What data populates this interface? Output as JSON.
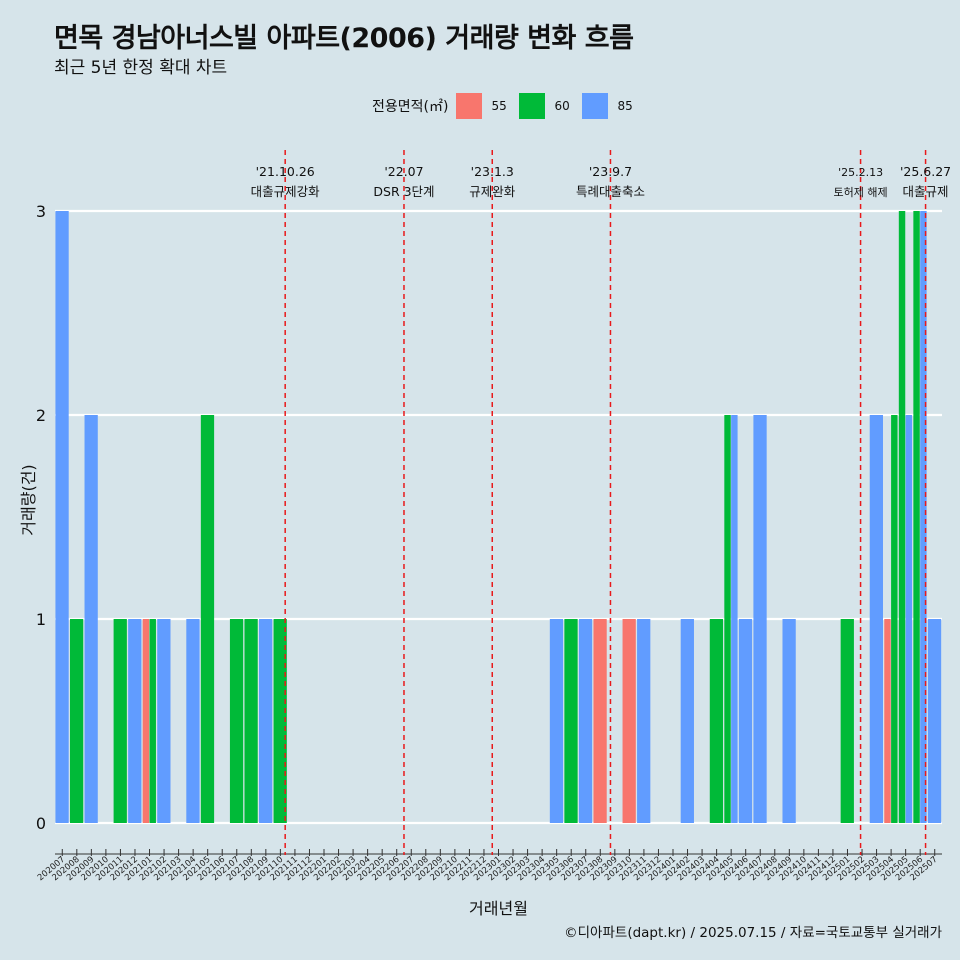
{
  "title": "면목 경남아너스빌 아파트(2006) 거래량 변화 흐름",
  "subtitle": "최근 5년 한정 확대 차트",
  "caption": "©디아파트(dapt.kr) / 2025.07.15 / 자료=국토교통부 실거래가",
  "legend": {
    "title": "전용면적(㎡)",
    "items": [
      {
        "label": "55",
        "color": "#f8766d"
      },
      {
        "label": "60",
        "color": "#00ba38"
      },
      {
        "label": "85",
        "color": "#619cff"
      }
    ]
  },
  "chart_data": {
    "type": "bar",
    "xlabel": "거래년월",
    "ylabel": "거래량(건)",
    "ylim": [
      0,
      3
    ],
    "yticks": [
      0,
      1,
      2,
      3
    ],
    "grid": true,
    "legend_position": "top",
    "categories": [
      "202007",
      "202008",
      "202009",
      "202010",
      "202011",
      "202012",
      "202101",
      "202102",
      "202103",
      "202104",
      "202105",
      "202106",
      "202107",
      "202108",
      "202109",
      "202110",
      "202111",
      "202112",
      "202201",
      "202202",
      "202203",
      "202204",
      "202205",
      "202206",
      "202207",
      "202208",
      "202209",
      "202210",
      "202211",
      "202212",
      "202301",
      "202302",
      "202303",
      "202304",
      "202305",
      "202306",
      "202307",
      "202308",
      "202309",
      "202310",
      "202311",
      "202312",
      "202401",
      "202402",
      "202403",
      "202404",
      "202405",
      "202406",
      "202407",
      "202408",
      "202409",
      "202410",
      "202411",
      "202412",
      "202501",
      "202502",
      "202503",
      "202504",
      "202505",
      "202506",
      "202507"
    ],
    "series": [
      {
        "name": "55",
        "color": "#f8766d",
        "values": [
          0,
          0,
          0,
          0,
          0,
          0,
          1,
          0,
          0,
          0,
          0,
          0,
          0,
          0,
          0,
          0,
          0,
          0,
          0,
          0,
          0,
          0,
          0,
          0,
          0,
          0,
          0,
          0,
          0,
          0,
          0,
          0,
          0,
          0,
          0,
          0,
          0,
          1,
          0,
          1,
          0,
          0,
          0,
          0,
          0,
          0,
          0,
          0,
          0,
          0,
          0,
          0,
          0,
          0,
          0,
          0,
          0,
          1,
          0,
          0,
          0
        ]
      },
      {
        "name": "60",
        "color": "#00ba38",
        "values": [
          0,
          1,
          0,
          0,
          1,
          0,
          1,
          0,
          0,
          0,
          2,
          0,
          1,
          1,
          0,
          1,
          0,
          0,
          0,
          0,
          0,
          0,
          0,
          0,
          0,
          0,
          0,
          0,
          0,
          0,
          0,
          0,
          0,
          0,
          0,
          1,
          0,
          0,
          0,
          0,
          0,
          0,
          0,
          0,
          0,
          1,
          2,
          0,
          0,
          0,
          0,
          0,
          0,
          0,
          1,
          0,
          0,
          2,
          3,
          3,
          0
        ]
      },
      {
        "name": "85",
        "color": "#619cff",
        "values": [
          3,
          0,
          2,
          0,
          0,
          1,
          0,
          1,
          0,
          1,
          0,
          0,
          0,
          0,
          1,
          0,
          0,
          0,
          0,
          0,
          0,
          0,
          0,
          0,
          0,
          0,
          0,
          0,
          0,
          0,
          0,
          0,
          0,
          0,
          1,
          0,
          1,
          0,
          0,
          0,
          1,
          0,
          0,
          1,
          0,
          0,
          2,
          1,
          2,
          0,
          1,
          0,
          0,
          0,
          0,
          0,
          2,
          0,
          2,
          3,
          1
        ]
      }
    ],
    "annotations": [
      {
        "date": "'21.10.26",
        "label": "대출규제강화",
        "category": "202110",
        "offset": 0.83
      },
      {
        "date": "'22.07",
        "label": "DSR 3단계",
        "category": "202207",
        "offset": 0.0
      },
      {
        "date": "'23.1.3",
        "label": "규제완화",
        "category": "202301",
        "offset": 0.07
      },
      {
        "date": "'23.9.7",
        "label": "특례대출축소",
        "category": "202309",
        "offset": 0.2
      },
      {
        "date": "'25.2.13",
        "label": "토허제 해제",
        "category": "202502",
        "offset": 0.4,
        "small": true
      },
      {
        "date": "'25.6.27",
        "label": "대출규제",
        "category": "202506",
        "offset": 0.87
      }
    ]
  }
}
